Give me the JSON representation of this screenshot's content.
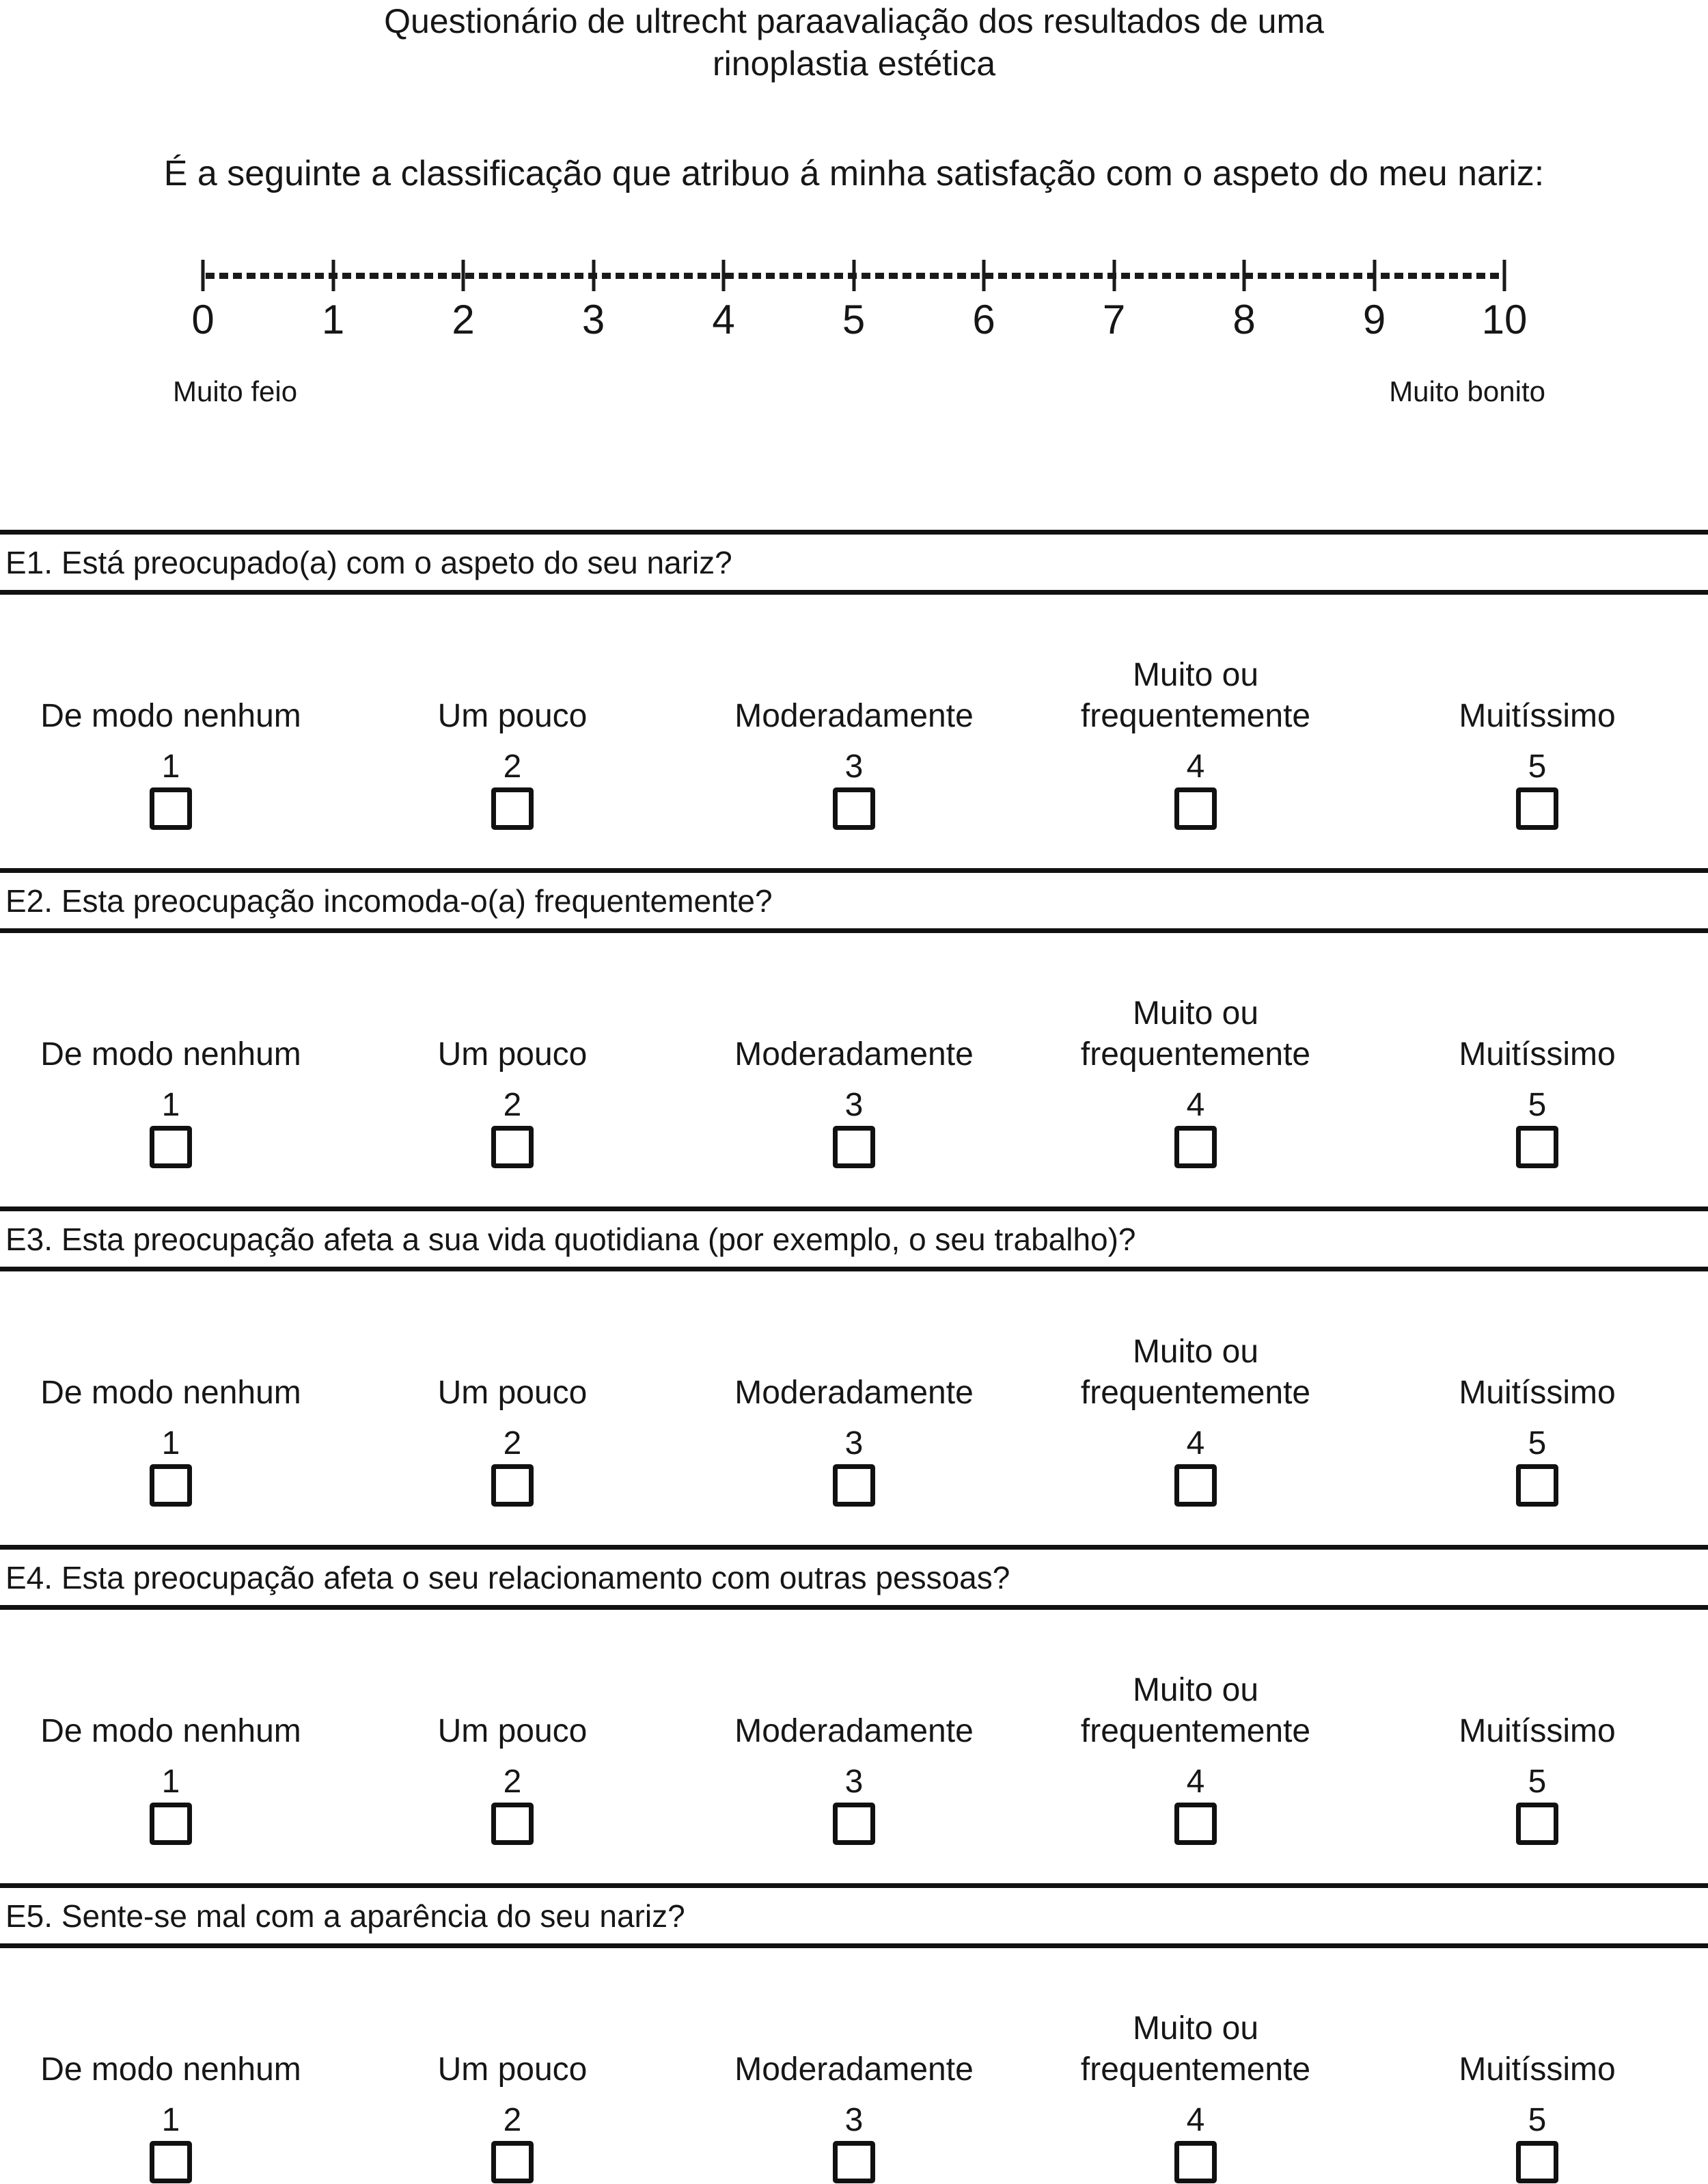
{
  "page": {
    "title": "Questionário de ultrecht paraavaliação dos resultados de uma\nrinoplastia estética",
    "subtitle": "É a seguinte a classificação que atribuo á minha satisfação com o aspeto do meu nariz:"
  },
  "scale": {
    "ticks": [
      "0",
      "1",
      "2",
      "3",
      "4",
      "5",
      "6",
      "7",
      "8",
      "9",
      "10"
    ],
    "min_label": "Muito feio",
    "max_label": "Muito bonito"
  },
  "options": {
    "labels": [
      "De modo nenhum",
      "Um pouco",
      "Moderadamente",
      "Muito ou\nfrequentemente",
      "Muitíssimo"
    ],
    "numbers": [
      "1",
      "2",
      "3",
      "4",
      "5"
    ]
  },
  "questions": [
    {
      "id": "E1",
      "text": "E1. Está preocupado(a) com o aspeto do seu nariz?"
    },
    {
      "id": "E2",
      "text": "E2. Esta preocupação incomoda-o(a) frequentemente?"
    },
    {
      "id": "E3",
      "text": "E3. Esta preocupação afeta a sua vida quotidiana (por exemplo, o seu trabalho)?"
    },
    {
      "id": "E4",
      "text": "E4. Esta preocupação afeta o seu relacionamento com outras pessoas?"
    },
    {
      "id": "E5",
      "text": "E5. Sente-se mal com a aparência do seu nariz?"
    }
  ],
  "colors": {
    "ink": "#161616",
    "rule": "#111111"
  }
}
